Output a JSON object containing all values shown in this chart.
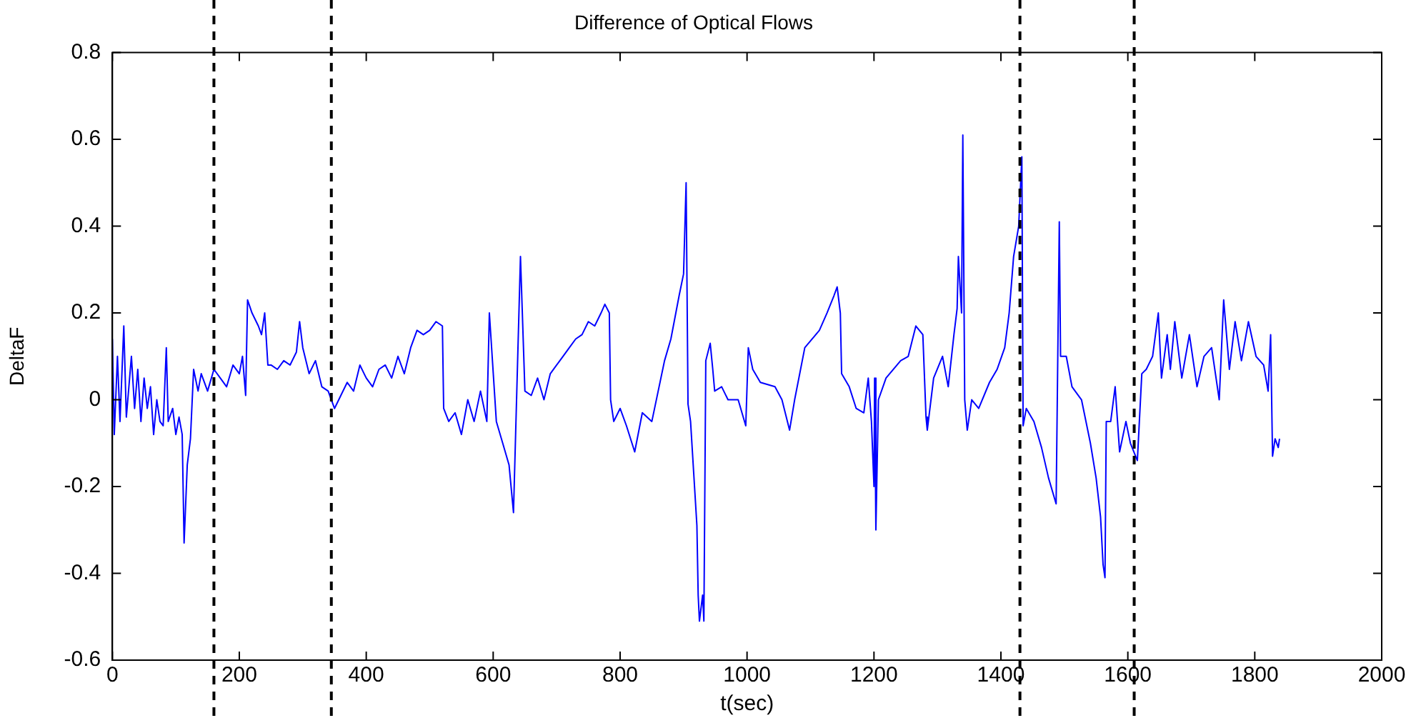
{
  "chart_data": {
    "type": "line",
    "title": "Difference of Optical Flows",
    "xlabel": "t(sec)",
    "ylabel": "DeltaF",
    "xlim": [
      0,
      2000
    ],
    "xticks": [
      0,
      200,
      400,
      600,
      800,
      1000,
      1200,
      1400,
      1600,
      1800,
      2000
    ],
    "ylim": [
      -0.6,
      0.8
    ],
    "yticks": [
      -0.6,
      -0.4,
      -0.2,
      0,
      0.2,
      0.4,
      0.6,
      0.8
    ],
    "grid": false,
    "legend": false,
    "marker": "none",
    "line_style": "solid",
    "ref_lines": [
      {
        "axis": "x",
        "value": 160,
        "color": "#000000",
        "line_style": "dashed"
      },
      {
        "axis": "x",
        "value": 345,
        "color": "#000000",
        "line_style": "dashed"
      },
      {
        "axis": "x",
        "value": 1430,
        "color": "#000000",
        "line_style": "dashed"
      },
      {
        "axis": "x",
        "value": 1610,
        "color": "#000000",
        "line_style": "dashed"
      }
    ],
    "series": [
      {
        "color": "#0000ff",
        "x": [
          0,
          3,
          8,
          12,
          18,
          22,
          30,
          35,
          40,
          45,
          50,
          55,
          60,
          65,
          70,
          75,
          80,
          85,
          88,
          95,
          100,
          105,
          110,
          113,
          118,
          123,
          128,
          135,
          140,
          150,
          160,
          170,
          180,
          190,
          200,
          205,
          210,
          213,
          220,
          230,
          235,
          240,
          245,
          250,
          260,
          270,
          280,
          290,
          295,
          300,
          310,
          320,
          330,
          340,
          350,
          360,
          370,
          380,
          390,
          400,
          410,
          420,
          430,
          440,
          450,
          460,
          470,
          480,
          490,
          500,
          510,
          520,
          522,
          530,
          540,
          550,
          560,
          570,
          580,
          590,
          594,
          605,
          615,
          625,
          632,
          643,
          650,
          660,
          670,
          680,
          690,
          700,
          710,
          720,
          730,
          740,
          750,
          760,
          770,
          776,
          783,
          785,
          790,
          800,
          810,
          823,
          835,
          850,
          870,
          880,
          893,
          900,
          904,
          907,
          911,
          916,
          921,
          923,
          925,
          930,
          932,
          935,
          942,
          946,
          949,
          960,
          970,
          986,
          998,
          1002,
          1009,
          1021,
          1044,
          1055,
          1067,
          1075,
          1091,
          1114,
          1126,
          1137,
          1142,
          1147,
          1149,
          1161,
          1172,
          1184,
          1191,
          1196,
          1200,
          1201,
          1203,
          1207,
          1219,
          1242,
          1254,
          1266,
          1277,
          1282,
          1284,
          1294,
          1308,
          1317,
          1326,
          1331,
          1333,
          1338,
          1340,
          1343,
          1347,
          1354,
          1365,
          1382,
          1394,
          1406,
          1413,
          1420,
          1428,
          1433,
          1435,
          1440,
          1452,
          1464,
          1475,
          1487,
          1492,
          1494,
          1503,
          1512,
          1527,
          1541,
          1550,
          1557,
          1561,
          1564,
          1566,
          1573,
          1580,
          1587,
          1597,
          1604,
          1615,
          1622,
          1629,
          1639,
          1648,
          1653,
          1662,
          1667,
          1674,
          1685,
          1697,
          1709,
          1720,
          1732,
          1744,
          1751,
          1760,
          1769,
          1779,
          1790,
          1802,
          1814,
          1821,
          1825,
          1828,
          1832,
          1837,
          1839
        ],
        "values": [
          0.14,
          -0.08,
          0.1,
          -0.05,
          0.17,
          -0.04,
          0.1,
          -0.02,
          0.07,
          -0.05,
          0.05,
          -0.02,
          0.03,
          -0.08,
          0,
          -0.05,
          -0.06,
          0.12,
          -0.05,
          -0.02,
          -0.08,
          -0.04,
          -0.08,
          -0.33,
          -0.15,
          -0.09,
          0.07,
          0.02,
          0.06,
          0.02,
          0.07,
          0.05,
          0.03,
          0.08,
          0.06,
          0.1,
          0.01,
          0.23,
          0.2,
          0.17,
          0.15,
          0.2,
          0.08,
          0.08,
          0.07,
          0.09,
          0.08,
          0.11,
          0.18,
          0.12,
          0.06,
          0.09,
          0.03,
          0.02,
          -0.02,
          0.01,
          0.04,
          0.02,
          0.08,
          0.05,
          0.03,
          0.07,
          0.08,
          0.05,
          0.1,
          0.06,
          0.12,
          0.16,
          0.15,
          0.16,
          0.18,
          0.17,
          -0.02,
          -0.05,
          -0.03,
          -0.08,
          0,
          -0.05,
          0.02,
          -0.05,
          0.2,
          -0.05,
          -0.1,
          -0.15,
          -0.26,
          0.33,
          0.02,
          0.01,
          0.05,
          0,
          0.06,
          0.08,
          0.1,
          0.12,
          0.14,
          0.15,
          0.18,
          0.17,
          0.2,
          0.22,
          0.2,
          0,
          -0.05,
          -0.02,
          -0.06,
          -0.12,
          -0.03,
          -0.05,
          0.09,
          0.14,
          0.24,
          0.29,
          0.5,
          -0.01,
          -0.05,
          -0.17,
          -0.29,
          -0.45,
          -0.51,
          -0.45,
          -0.51,
          0.09,
          0.13,
          0.07,
          0.02,
          0.03,
          0.0,
          0,
          -0.06,
          0.12,
          0.07,
          0.04,
          0.03,
          0.0,
          -0.07,
          0,
          0.12,
          0.16,
          0.2,
          0.24,
          0.26,
          0.2,
          0.06,
          0.03,
          -0.02,
          -0.03,
          0.05,
          -0.05,
          -0.2,
          0.05,
          -0.3,
          0,
          0.05,
          0.09,
          0.1,
          0.17,
          0.15,
          -0.04,
          -0.07,
          0.05,
          0.1,
          0.03,
          0.15,
          0.21,
          0.33,
          0.2,
          0.61,
          0,
          -0.07,
          0,
          -0.02,
          0.04,
          0.07,
          0.12,
          0.2,
          0.33,
          0.4,
          0.56,
          -0.06,
          -0.02,
          -0.05,
          -0.11,
          -0.18,
          -0.24,
          0.41,
          0.1,
          0.1,
          0.03,
          0,
          -0.1,
          -0.18,
          -0.27,
          -0.38,
          -0.41,
          -0.05,
          -0.05,
          0.03,
          -0.12,
          -0.05,
          -0.1,
          -0.14,
          0.06,
          0.07,
          0.1,
          0.2,
          0.05,
          0.15,
          0.07,
          0.18,
          0.05,
          0.15,
          0.03,
          0.1,
          0.12,
          0,
          0.23,
          0.07,
          0.18,
          0.09,
          0.18,
          0.1,
          0.08,
          0.02,
          0.15,
          -0.13,
          -0.09,
          -0.11,
          -0.09
        ]
      }
    ]
  }
}
